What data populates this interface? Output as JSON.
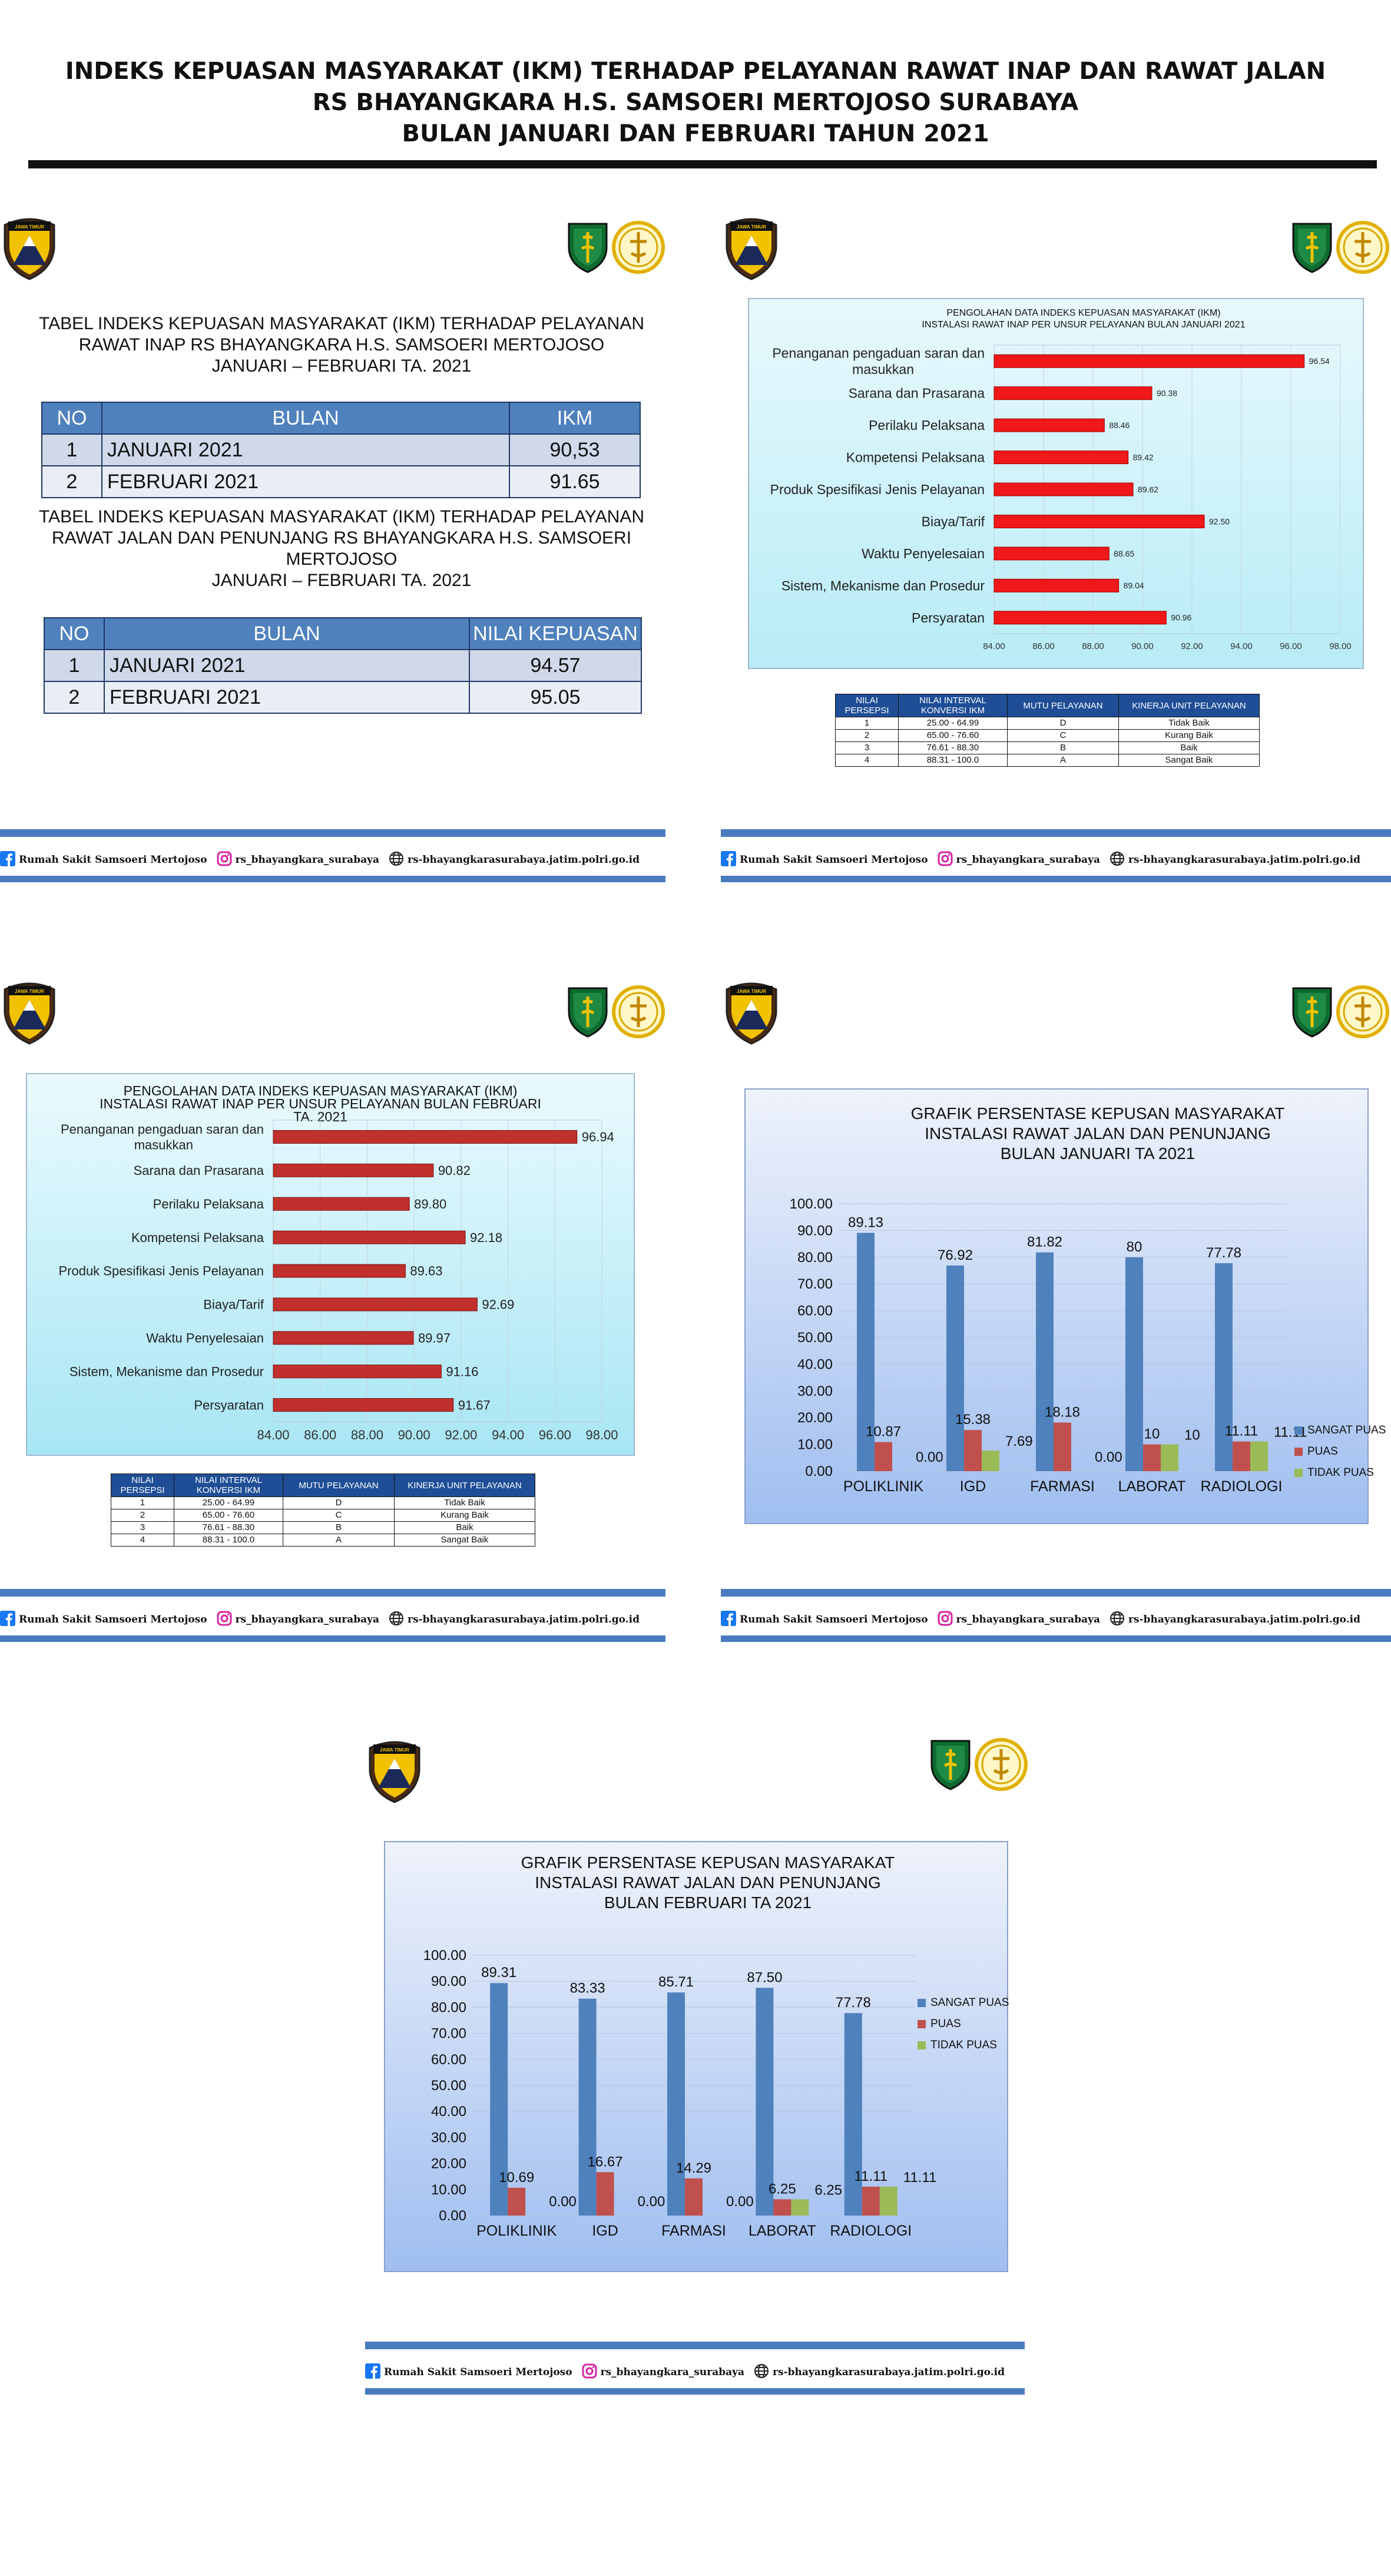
{
  "header": {
    "line1": "INDEKS KEPUASAN MASYARAKAT (IKM) TERHADAP PELAYANAN RAWAT INAP DAN RAWAT JALAN",
    "line2": "RS BHAYANGKARA H.S. SAMSOERI MERTOJOSO SURABAYA",
    "line3": "BULAN JANUARI DAN FEBRUARI TAHUN 2021"
  },
  "logos": {
    "police_badge_text": "JAWA TIMUR"
  },
  "colors": {
    "accent_blue": "#4f81bd",
    "bar_red": "#e02020",
    "sangat_puas": "#4f81bd",
    "puas": "#c0504d",
    "tidak_puas": "#9bbb59",
    "footer_blue": "#4a7bc0"
  },
  "footer": {
    "facebook": "Rumah Sakit Samsoeri Mertojoso",
    "instagram": "rs_bhayangkara_surabaya",
    "website": "rs-bhayangkarasurabaya.jatim.polri.go.id"
  },
  "panel1": {
    "table1_title": [
      "TABEL INDEKS  KEPUASAN MASYARAKAT (IKM) TERHADAP PELAYANAN",
      "RAWAT INAP RS BHAYANGKARA H.S. SAMSOERI MERTOJOSO",
      "JANUARI – FEBRUARI TA. 2021"
    ],
    "table1_headers": [
      "NO",
      "BULAN",
      "IKM"
    ],
    "table1_rows": [
      [
        "1",
        "JANUARI 2021",
        "90,53"
      ],
      [
        "2",
        "FEBRUARI 2021",
        "91.65"
      ]
    ],
    "table2_title": [
      "TABEL INDEKS  KEPUASAN MASYARAKAT (IKM) TERHADAP PELAYANAN",
      "RAWAT JALAN DAN PENUNJANG RS BHAYANGKARA H.S. SAMSOERI",
      "MERTOJOSO",
      "JANUARI – FEBRUARI TA. 2021"
    ],
    "table2_headers": [
      "NO",
      "BULAN",
      "NILAI KEPUASAN"
    ],
    "table2_rows": [
      [
        "1",
        "JANUARI 2021",
        "94.57"
      ],
      [
        "2",
        "FEBRUARI 2021",
        "95.05"
      ]
    ]
  },
  "persepsi_table": {
    "headers": [
      "NILAI PERSEPSI",
      "NILAI INTERVAL KONVERSI IKM",
      "MUTU PELAYANAN",
      "KINERJA UNIT PELAYANAN"
    ],
    "rows": [
      [
        "1",
        "25.00 - 64.99",
        "D",
        "Tidak Baik"
      ],
      [
        "2",
        "65.00 - 76.60",
        "C",
        "Kurang Baik"
      ],
      [
        "3",
        "76.61 - 88.30",
        "B",
        "Baik"
      ],
      [
        "4",
        "88.31 - 100.0",
        "A",
        "Sangat Baik"
      ]
    ]
  },
  "chart_data": [
    {
      "type": "bar",
      "orientation": "horizontal",
      "title": "PENGOLAHAN DATA INDEKS KEPUASAN MASYARAKAT (IKM) INSTALASI RAWAT INAP PER UNSUR PELAYANAN BULAN JANUARI 2021",
      "title_lines": [
        "PENGOLAHAN DATA INDEKS KEPUASAN MASYARAKAT (IKM)",
        "INSTALASI RAWAT INAP  PER UNSUR PELAYANAN BULAN JANUARI 2021"
      ],
      "categories": [
        "Penanganan pengaduan saran dan masukkan",
        "Sarana dan Prasarana",
        "Perilaku Pelaksana",
        "Kompetensi Pelaksana",
        "Produk Spesifikasi Jenis Pelayanan",
        "Biaya/Tarif",
        "Waktu Penyelesaian",
        "Sistem, Mekanisme dan Prosedur",
        "Persyaratan"
      ],
      "values": [
        96.54,
        90.38,
        88.46,
        89.42,
        89.62,
        92.5,
        88.65,
        89.04,
        90.96
      ],
      "value_labels": [
        "96.54",
        "90.38",
        "88.46",
        "89.42",
        "89.62",
        "92.50",
        "88.65",
        "89.04",
        "90.96"
      ],
      "xlim": [
        84,
        98
      ],
      "ticks": [
        "84.00",
        "86.00",
        "88.00",
        "90.00",
        "92.00",
        "94.00",
        "96.00",
        "98.00"
      ],
      "grid": true
    },
    {
      "type": "bar",
      "orientation": "horizontal",
      "title": "PENGOLAHAN DATA INDEKS KEPUASAN MASYARAKAT (IKM) INSTALASI RAWAT INAP PER UNSUR PELAYANAN BULAN FEBRUARI TA. 2021",
      "title_lines": [
        "PENGOLAHAN DATA INDEKS KEPUASAN MASYARAKAT (IKM)",
        "INSTALASI RAWAT INAP PER UNSUR PELAYANAN BULAN FEBRUARI",
        "TA. 2021"
      ],
      "categories": [
        "Penanganan pengaduan saran dan masukkan",
        "Sarana dan Prasarana",
        "Perilaku Pelaksana",
        "Kompetensi Pelaksana",
        "Produk Spesifikasi Jenis Pelayanan",
        "Biaya/Tarif",
        "Waktu Penyelesaian",
        "Sistem, Mekanisme dan Prosedur",
        "Persyaratan"
      ],
      "values": [
        96.94,
        90.82,
        89.8,
        92.18,
        89.63,
        92.69,
        89.97,
        91.16,
        91.67
      ],
      "value_labels": [
        "96.94",
        "90.82",
        "89.80",
        "92.18",
        "89.63",
        "92.69",
        "89.97",
        "91.16",
        "91.67"
      ],
      "xlim": [
        84,
        98
      ],
      "ticks": [
        "84.00",
        "86.00",
        "88.00",
        "90.00",
        "92.00",
        "94.00",
        "96.00",
        "98.00"
      ],
      "grid": true
    },
    {
      "type": "bar",
      "title": "GRAFIK PERSENTASE KEPUSAN MASYARAKAT INSTALASI RAWAT JALAN DAN PENUNJANG BULAN JANUARI TA 2021",
      "title_lines": [
        "GRAFIK PERSENTASE KEPUSAN MASYARAKAT",
        "INSTALASI RAWAT JALAN DAN PENUNJANG",
        "BULAN JANUARI TA 2021"
      ],
      "categories": [
        "POLIKLINIK",
        "IGD",
        "FARMASI",
        "LABORAT",
        "RADIOLOGI"
      ],
      "series": [
        {
          "name": "SANGAT PUAS",
          "values": [
            89.13,
            76.92,
            81.82,
            80,
            77.78
          ],
          "labels": [
            "89.13",
            "76.92",
            "81.82",
            "80",
            "77.78"
          ]
        },
        {
          "name": "PUAS",
          "values": [
            10.87,
            15.38,
            18.18,
            10,
            11.11
          ],
          "labels": [
            "10.87",
            "15.38",
            "18.18",
            "10",
            "11.11"
          ]
        },
        {
          "name": "TIDAK PUAS",
          "values": [
            0,
            7.69,
            0,
            10,
            11.11
          ],
          "labels": [
            "0.00",
            "7.69",
            "0.00",
            "10",
            "11.11"
          ]
        }
      ],
      "ylim": [
        0,
        100
      ],
      "ticks": [
        "0.00",
        "10.00",
        "20.00",
        "30.00",
        "40.00",
        "50.00",
        "60.00",
        "70.00",
        "80.00",
        "90.00",
        "100.00"
      ],
      "legend": "right",
      "grid": true
    },
    {
      "type": "bar",
      "title": "GRAFIK PERSENTASE KEPUSAN MASYARAKAT INSTALASI RAWAT JALAN DAN PENUNJANG BULAN FEBRUARI TA 2021",
      "title_lines": [
        "GRAFIK PERSENTASE KEPUSAN MASYARAKAT",
        "INSTALASI RAWAT JALAN DAN PENUNJANG",
        "BULAN FEBRUARI TA 2021"
      ],
      "categories": [
        "POLIKLINIK",
        "IGD",
        "FARMASI",
        "LABORAT",
        "RADIOLOGI"
      ],
      "series": [
        {
          "name": "SANGAT PUAS",
          "values": [
            89.31,
            83.33,
            85.71,
            87.5,
            77.78
          ],
          "labels": [
            "89.31",
            "83.33",
            "85.71",
            "87.50",
            "77.78"
          ]
        },
        {
          "name": "PUAS",
          "values": [
            10.69,
            16.67,
            14.29,
            6.25,
            11.11
          ],
          "labels": [
            "10.69",
            "16.67",
            "14.29",
            "6.25",
            "11.11"
          ]
        },
        {
          "name": "TIDAK PUAS",
          "values": [
            0,
            0,
            0,
            6.25,
            11.11
          ],
          "labels": [
            "0.00",
            "0.00",
            "0.00",
            "6.25",
            "11.11"
          ]
        }
      ],
      "ylim": [
        0,
        100
      ],
      "ticks": [
        "0.00",
        "10.00",
        "20.00",
        "30.00",
        "40.00",
        "50.00",
        "60.00",
        "70.00",
        "80.00",
        "90.00",
        "100.00"
      ],
      "legend": "right",
      "grid": true
    }
  ]
}
